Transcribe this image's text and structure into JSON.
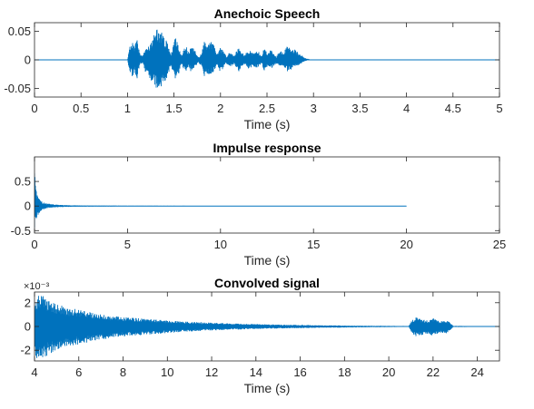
{
  "chart_data": [
    {
      "type": "line",
      "title": "Anechoic Speech",
      "xlabel": "Time (s)",
      "ylabel": "",
      "xlim": [
        0,
        5
      ],
      "ylim": [
        -0.065,
        0.065
      ],
      "xticks": [
        0,
        0.5,
        1,
        1.5,
        2,
        2.5,
        3,
        3.5,
        4,
        4.5,
        5
      ],
      "xtick_labels": [
        "0",
        "0.5",
        "1",
        "1.5",
        "2",
        "2.5",
        "3",
        "3.5",
        "4",
        "4.5",
        "5"
      ],
      "yticks": [
        0.05,
        0,
        -0.05
      ],
      "ytick_labels": [
        "0.05",
        "0",
        "-0.05"
      ],
      "exponent_label": "",
      "series": [
        {
          "color": "#0072BD",
          "envelope": {
            "x": [
              0,
              1.0,
              1.02,
              1.05,
              1.08,
              1.1,
              1.13,
              1.16,
              1.2,
              1.25,
              1.3,
              1.33,
              1.36,
              1.4,
              1.43,
              1.47,
              1.5,
              1.52,
              1.55,
              1.58,
              1.62,
              1.66,
              1.68,
              1.72,
              1.76,
              1.8,
              1.82,
              1.85,
              1.9,
              1.93,
              1.96,
              2.0,
              2.03,
              2.06,
              2.1,
              2.15,
              2.2,
              2.22,
              2.26,
              2.3,
              2.35,
              2.4,
              2.44,
              2.47,
              2.5,
              2.55,
              2.6,
              2.64,
              2.68,
              2.72,
              2.76,
              2.8,
              2.85,
              2.9,
              2.93,
              3.0,
              5.0
            ],
            "upper": [
              0,
              0,
              0.025,
              0.035,
              0.024,
              0.04,
              0.012,
              0.006,
              0.022,
              0.03,
              0.052,
              0.056,
              0.05,
              0.038,
              0.03,
              0.01,
              0.035,
              0.038,
              0.025,
              0.008,
              0.028,
              0.012,
              0.025,
              0.018,
              0.005,
              0.012,
              0.033,
              0.03,
              0.035,
              0.025,
              0.01,
              0.022,
              0.018,
              0.006,
              0.014,
              0.008,
              0.026,
              0.018,
              0.008,
              0.018,
              0.012,
              0.017,
              0.006,
              0.022,
              0.013,
              0.018,
              0.006,
              0.016,
              0.014,
              0.025,
              0.022,
              0.018,
              0.011,
              0.004,
              0.002,
              0,
              0
            ],
            "lower": [
              0,
              0,
              -0.02,
              -0.03,
              -0.022,
              -0.035,
              -0.01,
              -0.005,
              -0.025,
              -0.035,
              -0.048,
              -0.052,
              -0.05,
              -0.04,
              -0.03,
              -0.01,
              -0.03,
              -0.035,
              -0.025,
              -0.008,
              -0.022,
              -0.012,
              -0.02,
              -0.015,
              -0.005,
              -0.012,
              -0.03,
              -0.027,
              -0.025,
              -0.02,
              -0.008,
              -0.022,
              -0.016,
              -0.006,
              -0.012,
              -0.008,
              -0.022,
              -0.015,
              -0.008,
              -0.015,
              -0.012,
              -0.014,
              -0.006,
              -0.02,
              -0.012,
              -0.015,
              -0.006,
              -0.014,
              -0.012,
              -0.02,
              -0.017,
              -0.013,
              -0.008,
              -0.003,
              -0.001,
              0,
              0
            ]
          }
        }
      ]
    },
    {
      "type": "line",
      "title": "Impulse response",
      "xlabel": "Time (s)",
      "ylabel": "",
      "xlim": [
        0,
        25
      ],
      "ylim": [
        -0.55,
        1.0
      ],
      "xticks": [
        0,
        5,
        10,
        15,
        20,
        25
      ],
      "xtick_labels": [
        "0",
        "5",
        "10",
        "15",
        "20",
        "25"
      ],
      "yticks": [
        0.5,
        0,
        -0.5
      ],
      "ytick_labels": [
        "0.5",
        "0",
        "-0.5"
      ],
      "exponent_label": "",
      "series": [
        {
          "color": "#0072BD",
          "envelope": {
            "x": [
              0,
              0.03,
              0.08,
              0.15,
              0.25,
              0.4,
              0.6,
              0.9,
              1.3,
              2.0,
              3.0,
              5.0,
              10.0,
              20.0
            ],
            "upper": [
              1.0,
              0.55,
              0.35,
              0.24,
              0.15,
              0.09,
              0.06,
              0.04,
              0.025,
              0.015,
              0.01,
              0.006,
              0.004,
              0.002
            ],
            "lower": [
              -0.5,
              -0.35,
              -0.3,
              -0.22,
              -0.14,
              -0.08,
              -0.05,
              -0.035,
              -0.022,
              -0.014,
              -0.009,
              -0.006,
              -0.004,
              -0.002
            ]
          }
        }
      ]
    },
    {
      "type": "line",
      "title": "Convolved signal",
      "xlabel": "Time (s)",
      "ylabel": "",
      "xlim": [
        4,
        25
      ],
      "ylim": [
        -0.0029,
        0.0029
      ],
      "xticks": [
        4,
        6,
        8,
        10,
        12,
        14,
        16,
        18,
        20,
        22,
        24
      ],
      "xtick_labels": [
        "4",
        "6",
        "8",
        "10",
        "12",
        "14",
        "16",
        "18",
        "20",
        "22",
        "24"
      ],
      "yticks": [
        0.002,
        0,
        -0.002
      ],
      "ytick_labels": [
        "2",
        "0",
        "-2"
      ],
      "exponent_label": "×10⁻³",
      "series": [
        {
          "color": "#0072BD",
          "envelope": {
            "x": [
              4.0,
              4.3,
              4.7,
              5.0,
              5.5,
              6.0,
              6.5,
              7.0,
              8.0,
              9.0,
              10.0,
              11.0,
              12.0,
              13.0,
              14.0,
              15.0,
              16.0,
              17.0,
              18.0,
              19.0,
              20.0,
              20.9,
              21.0,
              21.2,
              21.5,
              21.8,
              22.0,
              22.3,
              22.6,
              22.8,
              22.9,
              25.0
            ],
            "upper": [
              0.0024,
              0.0027,
              0.0022,
              0.0019,
              0.0016,
              0.0014,
              0.0012,
              0.001,
              0.0008,
              0.00065,
              0.0005,
              0.0004,
              0.00032,
              0.00025,
              0.0002,
              0.00016,
              0.00013,
              0.0001,
              8e-05,
              6e-05,
              5e-05,
              4e-05,
              0.0004,
              0.0008,
              0.0006,
              0.0005,
              0.0007,
              0.0004,
              0.0005,
              0.0003,
              5e-05,
              3e-05
            ],
            "lower": [
              -0.0026,
              -0.0028,
              -0.0023,
              -0.002,
              -0.0017,
              -0.0015,
              -0.0013,
              -0.0011,
              -0.00085,
              -0.0007,
              -0.00055,
              -0.00043,
              -0.00034,
              -0.00027,
              -0.00021,
              -0.00017,
              -0.00014,
              -0.00011,
              -9e-05,
              -7e-05,
              -5e-05,
              -4e-05,
              -0.0004,
              -0.0009,
              -0.0007,
              -0.0006,
              -0.0008,
              -0.0005,
              -0.0006,
              -0.0003,
              -5e-05,
              -3e-05
            ]
          }
        }
      ]
    }
  ]
}
